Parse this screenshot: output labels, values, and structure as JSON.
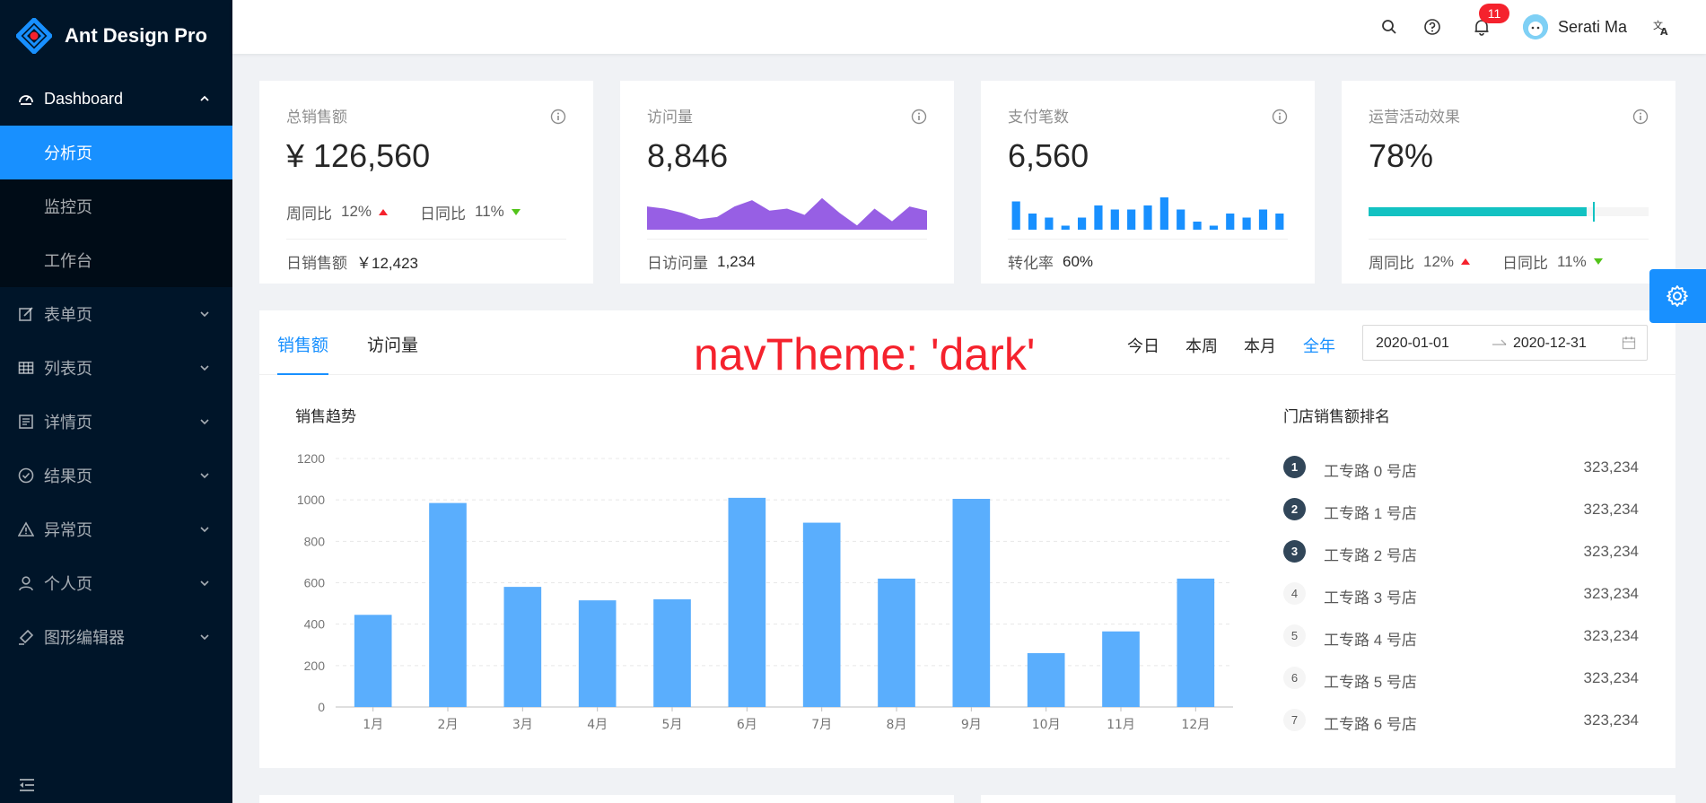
{
  "sidebar": {
    "logo_title": "Ant Design Pro",
    "dashboard": {
      "label": "Dashboard",
      "items": [
        {
          "label": "分析页"
        },
        {
          "label": "监控页"
        },
        {
          "label": "工作台"
        }
      ]
    },
    "items": [
      {
        "label": "表单页",
        "icon": "form-icon"
      },
      {
        "label": "列表页",
        "icon": "table-icon"
      },
      {
        "label": "详情页",
        "icon": "profile-icon"
      },
      {
        "label": "结果页",
        "icon": "check-circle-icon"
      },
      {
        "label": "异常页",
        "icon": "warning-icon"
      },
      {
        "label": "个人页",
        "icon": "user-icon"
      },
      {
        "label": "图形编辑器",
        "icon": "highlight-icon"
      }
    ]
  },
  "header": {
    "notification_count": "11",
    "username": "Serati Ma"
  },
  "stats": [
    {
      "title": "总销售额",
      "value": "¥ 126,560",
      "week_label": "周同比",
      "week_value": "12%",
      "day_label": "日同比",
      "day_value": "11%",
      "foot_label": "日销售额",
      "foot_value": "￥12,423"
    },
    {
      "title": "访问量",
      "value": "8,846",
      "foot_label": "日访问量",
      "foot_value": "1,234"
    },
    {
      "title": "支付笔数",
      "value": "6,560",
      "foot_label": "转化率",
      "foot_value": "60%"
    },
    {
      "title": "运营活动效果",
      "value": "78%",
      "progress": 0.78,
      "week_label": "周同比",
      "week_value": "12%",
      "day_label": "日同比",
      "day_value": "11%"
    }
  ],
  "sales": {
    "tabs": [
      "销售额",
      "访问量"
    ],
    "ranges": [
      "今日",
      "本周",
      "本月",
      "全年"
    ],
    "date_start": "2020-01-01",
    "date_end": "2020-12-31",
    "chart_title": "销售趋势",
    "rank_title": "门店销售额排名",
    "ranking": [
      {
        "rank": "1",
        "name": "工专路 0 号店",
        "value": "323,234"
      },
      {
        "rank": "2",
        "name": "工专路 1 号店",
        "value": "323,234"
      },
      {
        "rank": "3",
        "name": "工专路 2 号店",
        "value": "323,234"
      },
      {
        "rank": "4",
        "name": "工专路 3 号店",
        "value": "323,234"
      },
      {
        "rank": "5",
        "name": "工专路 4 号店",
        "value": "323,234"
      },
      {
        "rank": "6",
        "name": "工专路 5 号店",
        "value": "323,234"
      },
      {
        "rank": "7",
        "name": "工专路 6 号店",
        "value": "323,234"
      }
    ]
  },
  "overlay_text": "navTheme: 'dark'",
  "chart_data": {
    "type": "bar",
    "categories": [
      "1月",
      "2月",
      "3月",
      "4月",
      "5月",
      "6月",
      "7月",
      "8月",
      "9月",
      "10月",
      "11月",
      "12月"
    ],
    "values": [
      445,
      985,
      580,
      515,
      520,
      1010,
      890,
      620,
      1005,
      260,
      365,
      620
    ],
    "ylim": [
      0,
      1200
    ],
    "yticks": [
      0,
      200,
      400,
      600,
      800,
      1000,
      1200
    ],
    "grid": true,
    "color": "#5aaefd"
  },
  "mini_area": [
    22,
    20,
    16,
    10,
    12,
    22,
    28,
    18,
    20,
    14,
    30,
    16,
    4,
    20,
    8,
    22,
    18
  ],
  "mini_bars": [
    7,
    4,
    3,
    1,
    3,
    6,
    5,
    5,
    6,
    8,
    5,
    2,
    1,
    4,
    3,
    5,
    4
  ],
  "colors": {
    "sider": "#001529",
    "primary": "#1890ff",
    "area": "#975fe4",
    "progress": "#13c2c2",
    "up": "#f5222d",
    "down": "#52c41a"
  }
}
